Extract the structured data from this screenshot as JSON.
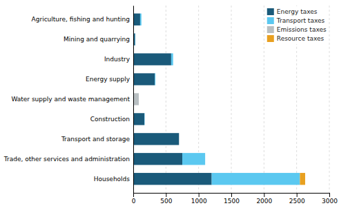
{
  "chart_data": {
    "type": "bar",
    "orientation": "horizontal",
    "stacked": true,
    "categories": [
      "Agriculture, fishing and hunting",
      "Mining and quarrying",
      "Industry",
      "Energy supply",
      "Water supply and waste management",
      "Construction",
      "Transport and storage",
      "Trade, other services and administration",
      "Households"
    ],
    "series": [
      {
        "name": "Energy taxes",
        "color": "#1a5a7a",
        "values": [
          105,
          28,
          580,
          330,
          5,
          170,
          700,
          750,
          1200
        ]
      },
      {
        "name": "Transport taxes",
        "color": "#5bc8f0",
        "values": [
          20,
          5,
          30,
          10,
          0,
          5,
          0,
          350,
          1350
        ]
      },
      {
        "name": "Emissions taxes",
        "color": "#b8bfc2",
        "values": [
          0,
          0,
          0,
          0,
          80,
          0,
          0,
          0,
          0
        ]
      },
      {
        "name": "Resource taxes",
        "color": "#e8a020",
        "values": [
          0,
          0,
          0,
          0,
          0,
          0,
          0,
          0,
          80
        ]
      }
    ],
    "xlim": [
      0,
      3000
    ],
    "xticks": [
      0,
      500,
      1000,
      1500,
      2000,
      2500,
      3000
    ],
    "grid": true,
    "legend": "upper right"
  }
}
